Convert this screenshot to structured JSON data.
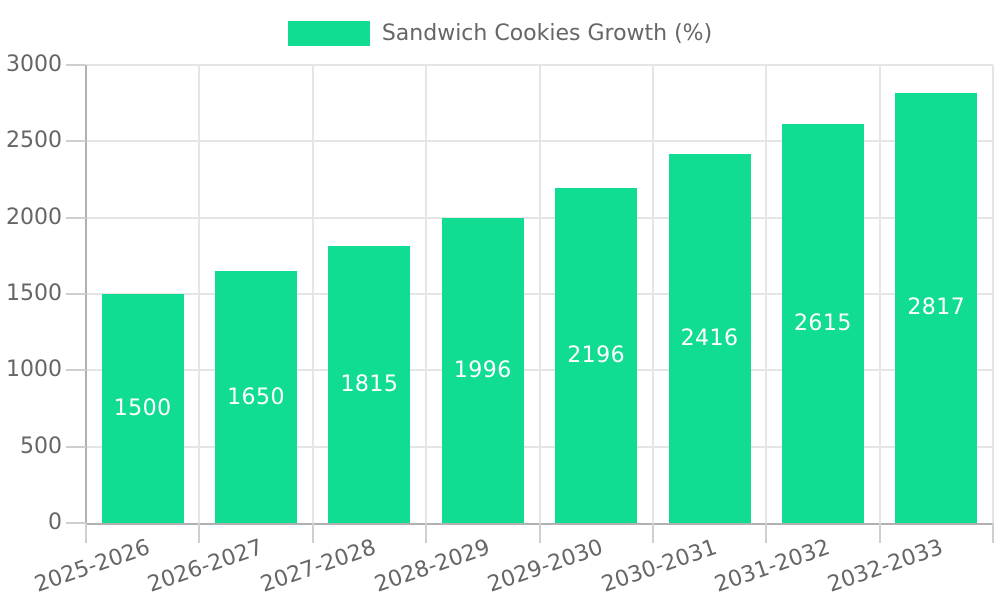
{
  "chart_data": {
    "type": "bar",
    "title": "",
    "legend_label": "Sandwich Cookies Growth (%)",
    "legend_position": "top",
    "categories": [
      "2025-2026",
      "2026-2027",
      "2027-2028",
      "2028-2029",
      "2029-2030",
      "2030-2031",
      "2031-2032",
      "2032-2033"
    ],
    "series": [
      {
        "name": "Sandwich Cookies Growth (%)",
        "values": [
          1500,
          1650,
          1815,
          1996,
          2196,
          2416,
          2615,
          2817
        ]
      }
    ],
    "bar_value_labels": [
      "1500",
      "1650",
      "1815",
      "1996",
      "2196",
      "2416",
      "2615",
      "2817"
    ],
    "xlabel": "",
    "ylabel": "",
    "ylim": [
      0,
      3000
    ],
    "yticks": [
      0,
      500,
      1000,
      1500,
      2000,
      2500,
      3000
    ],
    "grid": "on",
    "colors": {
      "bar": "#10dc92",
      "grid": "#e5e5e5",
      "axis": "#b1b1b1",
      "tick": "#cfcfcf",
      "text": "#666666",
      "value_label": "#ffffff"
    }
  }
}
